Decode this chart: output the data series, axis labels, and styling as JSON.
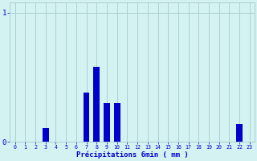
{
  "xlabel": "Précipitations 6min ( mm )",
  "background_color": "#d5f2f2",
  "bar_color": "#0000cc",
  "grid_color": "#aacfcf",
  "text_color": "#0000cc",
  "xlim": [
    -0.5,
    23.5
  ],
  "ylim": [
    0,
    1.08
  ],
  "yticks": [
    0,
    1
  ],
  "xticks": [
    0,
    1,
    2,
    3,
    4,
    5,
    6,
    7,
    8,
    9,
    10,
    11,
    12,
    13,
    14,
    15,
    16,
    17,
    18,
    19,
    20,
    21,
    22,
    23
  ],
  "categories": [
    0,
    1,
    2,
    3,
    4,
    5,
    6,
    7,
    8,
    9,
    10,
    11,
    12,
    13,
    14,
    15,
    16,
    17,
    18,
    19,
    20,
    21,
    22,
    23
  ],
  "values": [
    0,
    0,
    0,
    0.11,
    0,
    0,
    0,
    0.38,
    0.58,
    0.3,
    0.3,
    0,
    0,
    0,
    0,
    0,
    0,
    0,
    0,
    0,
    0,
    0,
    0.14,
    0
  ],
  "bar_width": 0.6,
  "figsize": [
    3.2,
    2.0
  ],
  "dpi": 100
}
